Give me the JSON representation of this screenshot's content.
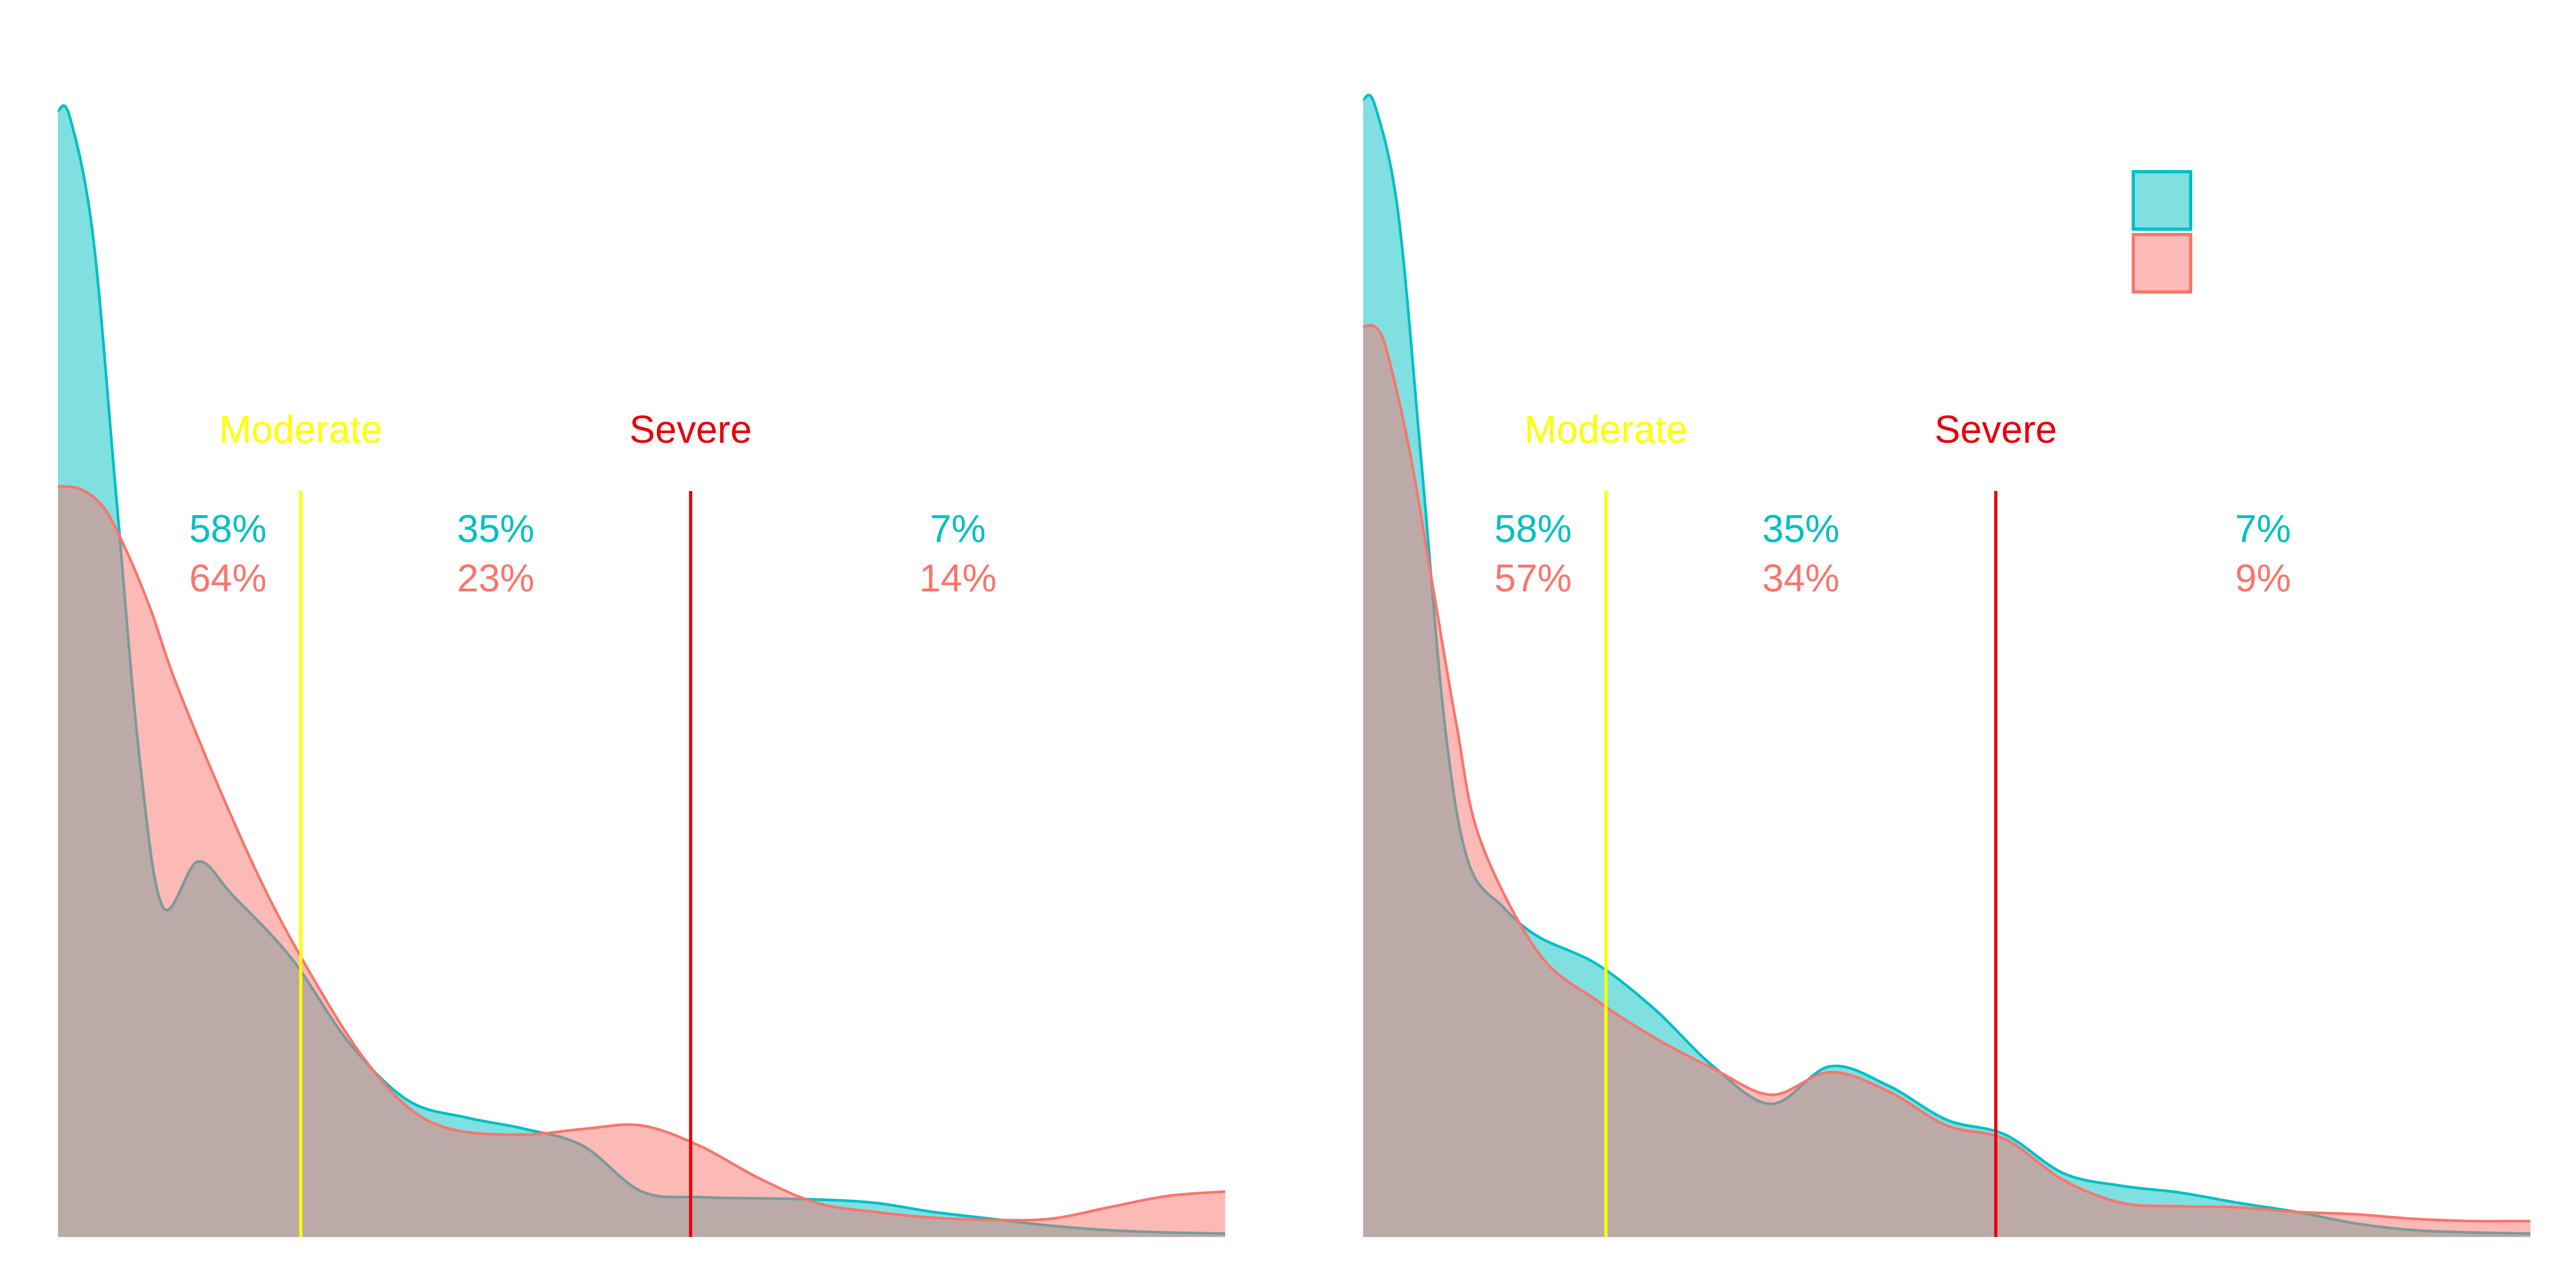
{
  "colors": {
    "series_a": "#00BFC4",
    "series_b": "#F8766D",
    "moderate": "#FFFF00",
    "severe": "#E8000B"
  },
  "legend": {
    "placement": "top-right",
    "entries": [
      "",
      ""
    ]
  },
  "chart_data": [
    {
      "type": "area",
      "title": "",
      "xlabel": "",
      "ylabel": "",
      "x_range": [
        0,
        100
      ],
      "y_range": [
        0,
        1
      ],
      "grid": false,
      "thresholds": [
        {
          "name": "Moderate",
          "x": 20.8,
          "color": "#FFFF00"
        },
        {
          "name": "Severe",
          "x": 54.2,
          "color": "#E8000B"
        }
      ],
      "series": [
        {
          "x": [
            0,
            1,
            3,
            5,
            7,
            9,
            12,
            15,
            20,
            25,
            30,
            35,
            40,
            45,
            50,
            55,
            60,
            65,
            70,
            75,
            80,
            85,
            90,
            95,
            100
          ],
          "values": [
            0.99,
            0.985,
            0.88,
            0.65,
            0.42,
            0.29,
            0.33,
            0.3,
            0.245,
            0.17,
            0.12,
            0.105,
            0.095,
            0.08,
            0.04,
            0.035,
            0.034,
            0.033,
            0.03,
            0.022,
            0.016,
            0.01,
            0.006,
            0.004,
            0.003
          ],
          "band_labels": [
            "58%",
            "35%",
            "7%"
          ]
        },
        {
          "x": [
            0,
            2,
            4,
            6,
            8,
            10,
            14,
            18,
            22,
            26,
            30,
            34,
            40,
            45,
            50,
            55,
            60,
            65,
            70,
            75,
            80,
            85,
            90,
            95,
            100
          ],
          "values": [
            0.66,
            0.657,
            0.64,
            0.6,
            0.55,
            0.49,
            0.39,
            0.3,
            0.225,
            0.16,
            0.114,
            0.094,
            0.09,
            0.095,
            0.098,
            0.08,
            0.052,
            0.03,
            0.022,
            0.017,
            0.015,
            0.016,
            0.026,
            0.036,
            0.04
          ],
          "band_labels": [
            "64%",
            "23%",
            "14%"
          ]
        }
      ]
    },
    {
      "type": "area",
      "title": "",
      "xlabel": "",
      "ylabel": "",
      "x_range": [
        0,
        100
      ],
      "y_range": [
        0,
        1
      ],
      "grid": false,
      "thresholds": [
        {
          "name": "Moderate",
          "x": 20.8,
          "color": "#FFFF00"
        },
        {
          "name": "Severe",
          "x": 54.2,
          "color": "#E8000B"
        }
      ],
      "series": [
        {
          "x": [
            0,
            1,
            3,
            5,
            7,
            9,
            12,
            15,
            20,
            25,
            30,
            35,
            40,
            45,
            50,
            55,
            60,
            65,
            70,
            75,
            80,
            85,
            90,
            95,
            100
          ],
          "values": [
            1.0,
            0.995,
            0.9,
            0.68,
            0.45,
            0.33,
            0.29,
            0.264,
            0.24,
            0.2,
            0.15,
            0.117,
            0.15,
            0.133,
            0.103,
            0.09,
            0.056,
            0.045,
            0.039,
            0.03,
            0.022,
            0.012,
            0.006,
            0.004,
            0.003
          ],
          "band_labels": [
            "58%",
            "35%",
            "7%"
          ]
        },
        {
          "x": [
            0,
            1,
            2,
            4,
            6,
            8,
            10,
            15,
            20,
            25,
            30,
            35,
            40,
            45,
            50,
            55,
            60,
            65,
            70,
            75,
            80,
            85,
            90,
            95,
            100
          ],
          "values": [
            0.8,
            0.8,
            0.78,
            0.69,
            0.57,
            0.45,
            0.35,
            0.25,
            0.208,
            0.175,
            0.148,
            0.125,
            0.145,
            0.128,
            0.098,
            0.086,
            0.05,
            0.03,
            0.027,
            0.026,
            0.022,
            0.02,
            0.016,
            0.014,
            0.014
          ],
          "band_labels": [
            "57%",
            "34%",
            "9%"
          ]
        }
      ]
    }
  ]
}
